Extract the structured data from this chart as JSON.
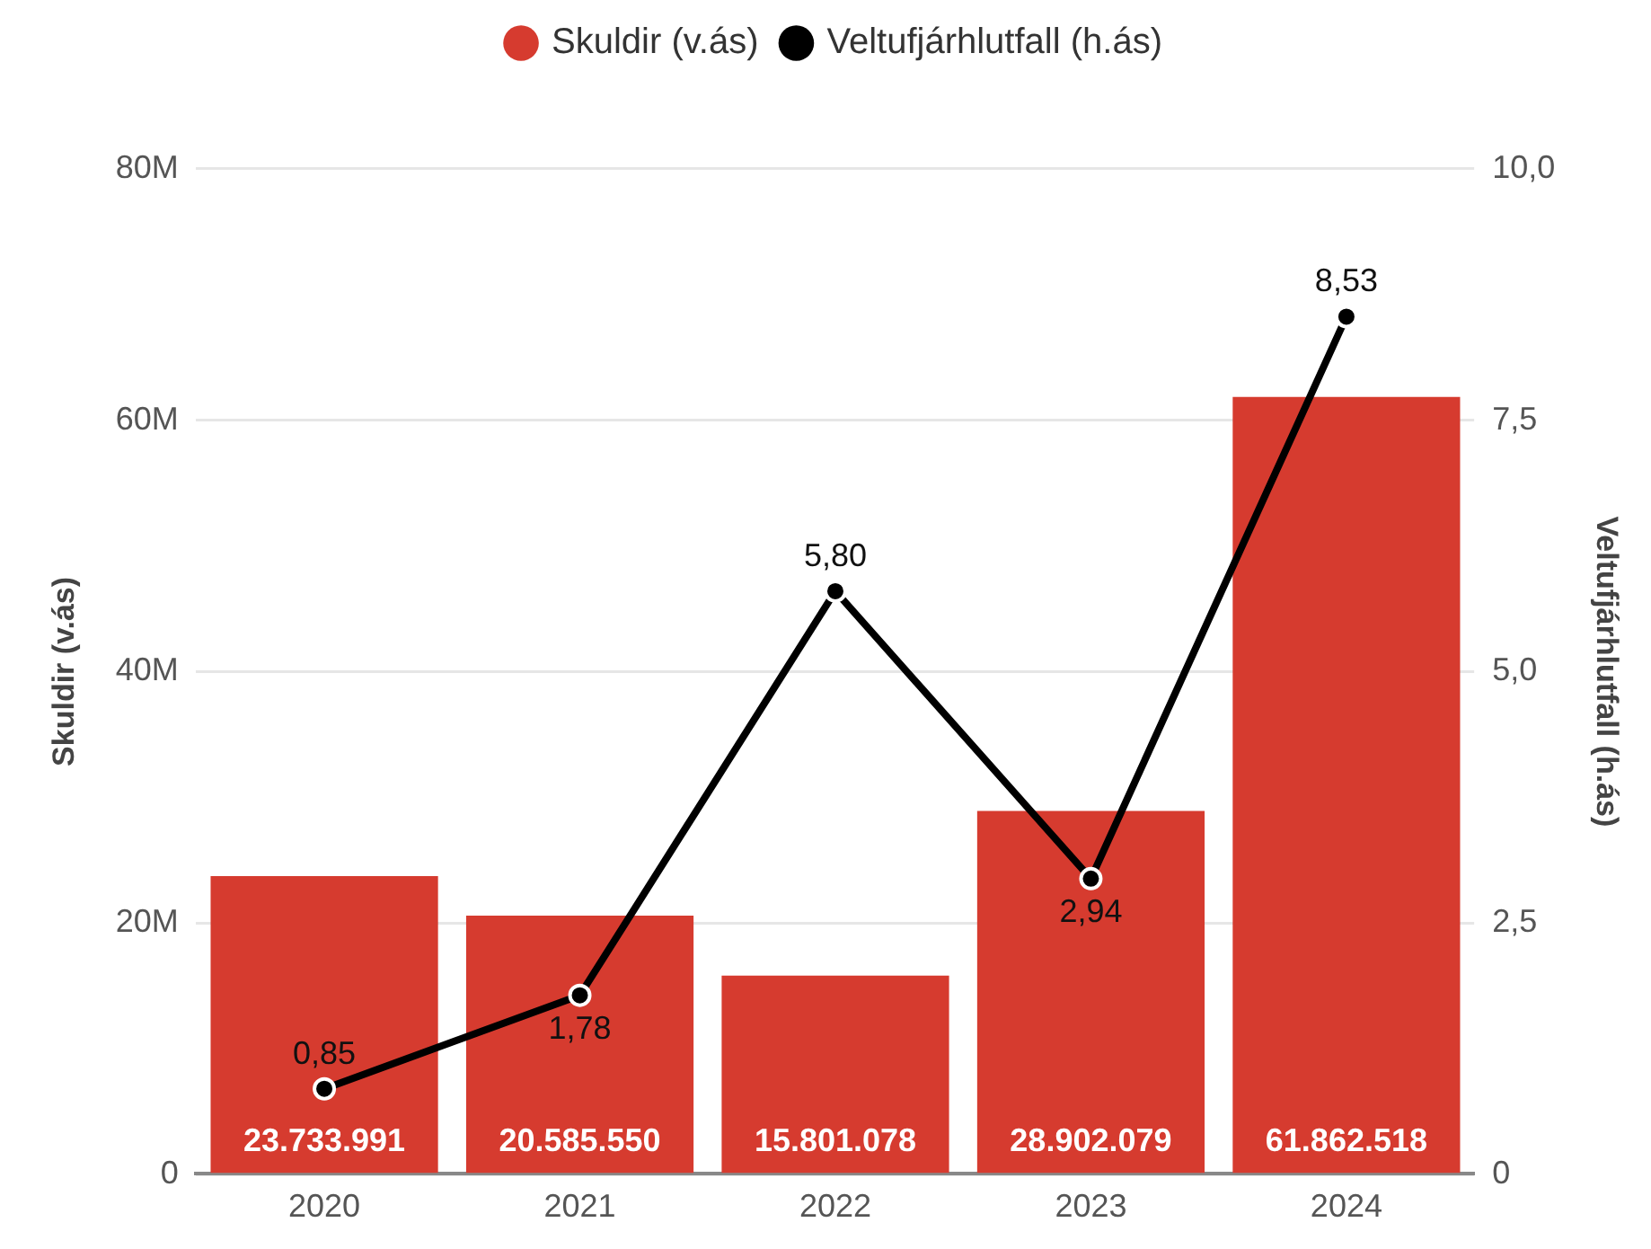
{
  "chart_data": {
    "type": "bar",
    "categories": [
      "2020",
      "2021",
      "2022",
      "2023",
      "2024"
    ],
    "series": [
      {
        "name": "Skuldir (v.ás)",
        "color": "#d63b2f",
        "values": [
          23733991,
          20585550,
          15801078,
          28902079,
          61862518
        ],
        "value_labels": [
          "23.733.991",
          "20.585.550",
          "15.801.078",
          "28.902.079",
          "61.862.518"
        ]
      },
      {
        "name": "Veltufjárhlutfall (h.ás)",
        "type": "line",
        "axis": "y2",
        "color": "#000000",
        "values": [
          0.85,
          1.78,
          5.8,
          2.94,
          8.53
        ],
        "value_labels": [
          "0,85",
          "1,78",
          "5,80",
          "2,94",
          "8,53"
        ]
      }
    ],
    "ylabel": "Skuldir (v.ás)",
    "y2label": "Veltufjárhlutfall (h.ás)",
    "ylim": [
      0,
      80000000
    ],
    "yticks": [
      0,
      {
        "value": 20000000,
        "label": "20M"
      },
      {
        "value": 40000000,
        "label": "40M"
      },
      {
        "value": 60000000,
        "label": "60M"
      },
      {
        "value": 80000000,
        "label": "80M"
      }
    ],
    "y2lim": [
      0,
      10
    ],
    "y2ticks": [
      0,
      {
        "value": 2.5,
        "label": "2,5"
      },
      {
        "value": 5,
        "label": "5,0"
      },
      {
        "value": 7.5,
        "label": "7,5"
      },
      {
        "value": 10,
        "label": "10,0"
      }
    ],
    "grid": "y",
    "legend": "top",
    "marker": "circle"
  }
}
